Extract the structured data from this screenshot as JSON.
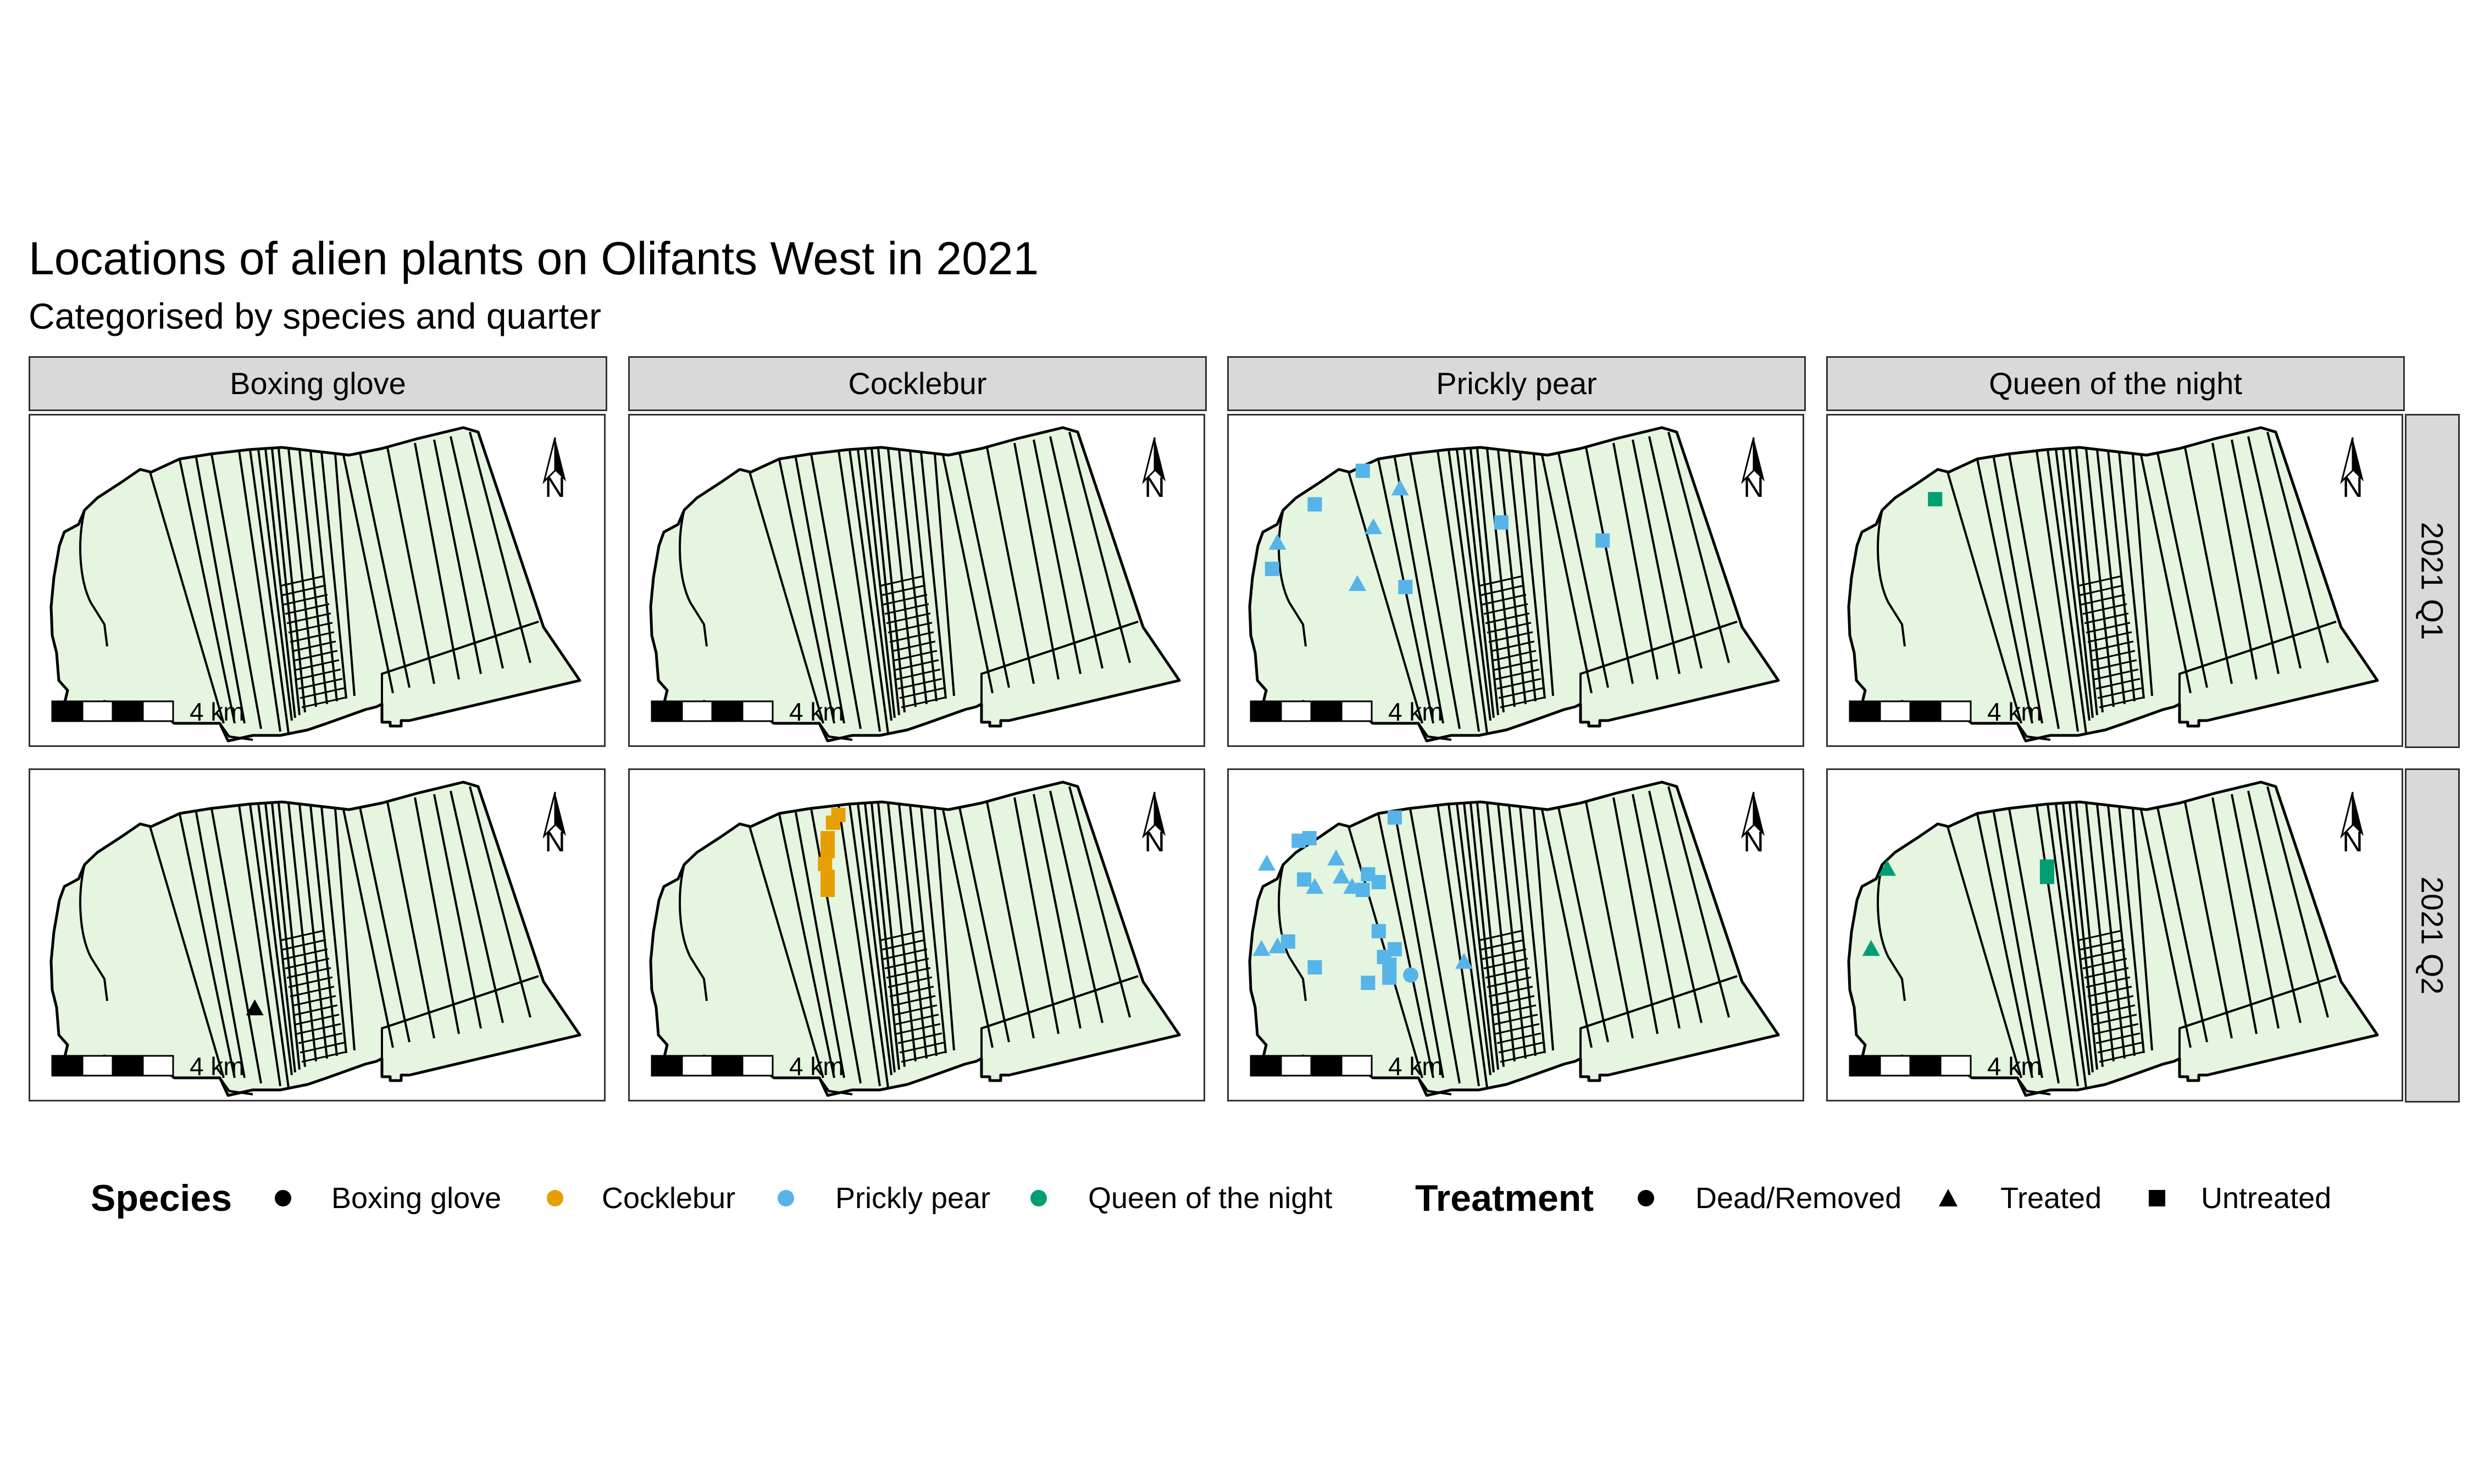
{
  "title": "Locations of alien plants on Olifants West in 2021",
  "subtitle": "Categorised by species and quarter",
  "facets": {
    "columns": [
      "Boxing glove",
      "Cocklebur",
      "Prickly pear",
      "Queen of the night"
    ],
    "rows": [
      "2021 Q1",
      "2021 Q2"
    ]
  },
  "map_furniture": {
    "scale_bar_label": "4 km",
    "north_arrow_label": "N"
  },
  "legend": {
    "species_title": "Species",
    "species": [
      {
        "label": "Boxing glove",
        "color": "#000000"
      },
      {
        "label": "Cocklebur",
        "color": "#E69F00"
      },
      {
        "label": "Prickly pear",
        "color": "#56B4E9"
      },
      {
        "label": "Queen of the night",
        "color": "#009E73"
      }
    ],
    "treatment_title": "Treatment",
    "treatments": [
      {
        "label": "Dead/Removed",
        "shape": "circle"
      },
      {
        "label": "Treated",
        "shape": "triangle"
      },
      {
        "label": "Untreated",
        "shape": "square"
      }
    ]
  },
  "colors": {
    "land_fill": "#E5F5E0",
    "strip_fill": "#D9D9D9",
    "boundary": "#000000"
  },
  "chart_data": {
    "type": "scatter",
    "facet_cols": [
      "Boxing glove",
      "Cocklebur",
      "Prickly pear",
      "Queen of the night"
    ],
    "facet_rows": [
      "2021 Q1",
      "2021 Q2"
    ],
    "coordinates": "relative position within the Olifants West map extent (0 = west/south edge, 1 = east/north edge)",
    "panels": [
      {
        "species": "Boxing glove",
        "quarter": "2021 Q1",
        "points": []
      },
      {
        "species": "Cocklebur",
        "quarter": "2021 Q1",
        "points": []
      },
      {
        "species": "Prickly pear",
        "quarter": "2021 Q1",
        "points": [
          {
            "x": 0.21,
            "y": 0.85,
            "treatment": "Untreated"
          },
          {
            "x": 0.12,
            "y": 0.72,
            "treatment": "Untreated"
          },
          {
            "x": 0.05,
            "y": 0.57,
            "treatment": "Treated"
          },
          {
            "x": 0.04,
            "y": 0.47,
            "treatment": "Untreated"
          },
          {
            "x": 0.28,
            "y": 0.78,
            "treatment": "Treated"
          },
          {
            "x": 0.23,
            "y": 0.63,
            "treatment": "Treated"
          },
          {
            "x": 0.2,
            "y": 0.41,
            "treatment": "Treated"
          },
          {
            "x": 0.29,
            "y": 0.4,
            "treatment": "Untreated"
          },
          {
            "x": 0.47,
            "y": 0.65,
            "treatment": "Untreated"
          },
          {
            "x": 0.66,
            "y": 0.58,
            "treatment": "Untreated"
          }
        ]
      },
      {
        "species": "Queen of the night",
        "quarter": "2021 Q1",
        "points": [
          {
            "x": 0.16,
            "y": 0.74,
            "treatment": "Untreated"
          }
        ]
      },
      {
        "species": "Boxing glove",
        "quarter": "2021 Q2",
        "points": [
          {
            "x": 0.38,
            "y": 0.14,
            "treatment": "Treated"
          }
        ]
      },
      {
        "species": "Cocklebur",
        "quarter": "2021 Q2",
        "points": [
          {
            "x": 0.35,
            "y": 0.89,
            "treatment": "Untreated"
          },
          {
            "x": 0.34,
            "y": 0.86,
            "treatment": "Untreated"
          },
          {
            "x": 0.33,
            "y": 0.8,
            "treatment": "Untreated"
          },
          {
            "x": 0.33,
            "y": 0.75,
            "treatment": "Untreated"
          },
          {
            "x": 0.325,
            "y": 0.7,
            "treatment": "Untreated"
          },
          {
            "x": 0.33,
            "y": 0.65,
            "treatment": "Untreated"
          },
          {
            "x": 0.33,
            "y": 0.6,
            "treatment": "Untreated"
          }
        ]
      },
      {
        "species": "Prickly pear",
        "quarter": "2021 Q2",
        "points": [
          {
            "x": 0.03,
            "y": 0.7,
            "treatment": "Treated"
          },
          {
            "x": 0.09,
            "y": 0.79,
            "treatment": "Untreated"
          },
          {
            "x": 0.11,
            "y": 0.8,
            "treatment": "Untreated"
          },
          {
            "x": 0.1,
            "y": 0.64,
            "treatment": "Untreated"
          },
          {
            "x": 0.12,
            "y": 0.61,
            "treatment": "Treated"
          },
          {
            "x": 0.16,
            "y": 0.72,
            "treatment": "Treated"
          },
          {
            "x": 0.17,
            "y": 0.65,
            "treatment": "Treated"
          },
          {
            "x": 0.19,
            "y": 0.61,
            "treatment": "Treated"
          },
          {
            "x": 0.21,
            "y": 0.6,
            "treatment": "Untreated"
          },
          {
            "x": 0.22,
            "y": 0.66,
            "treatment": "Untreated"
          },
          {
            "x": 0.24,
            "y": 0.63,
            "treatment": "Untreated"
          },
          {
            "x": 0.27,
            "y": 0.88,
            "treatment": "Untreated"
          },
          {
            "x": 0.02,
            "y": 0.37,
            "treatment": "Treated"
          },
          {
            "x": 0.05,
            "y": 0.38,
            "treatment": "Treated"
          },
          {
            "x": 0.07,
            "y": 0.4,
            "treatment": "Untreated"
          },
          {
            "x": 0.12,
            "y": 0.3,
            "treatment": "Untreated"
          },
          {
            "x": 0.24,
            "y": 0.44,
            "treatment": "Untreated"
          },
          {
            "x": 0.25,
            "y": 0.34,
            "treatment": "Untreated"
          },
          {
            "x": 0.26,
            "y": 0.31,
            "treatment": "Untreated"
          },
          {
            "x": 0.27,
            "y": 0.37,
            "treatment": "Untreated"
          },
          {
            "x": 0.26,
            "y": 0.26,
            "treatment": "Untreated"
          },
          {
            "x": 0.22,
            "y": 0.24,
            "treatment": "Untreated"
          },
          {
            "x": 0.3,
            "y": 0.27,
            "treatment": "Dead/Removed"
          },
          {
            "x": 0.4,
            "y": 0.32,
            "treatment": "Treated"
          }
        ]
      },
      {
        "species": "Queen of the night",
        "quarter": "2021 Q2",
        "points": [
          {
            "x": 0.07,
            "y": 0.68,
            "treatment": "Treated"
          },
          {
            "x": 0.04,
            "y": 0.37,
            "treatment": "Treated"
          },
          {
            "x": 0.37,
            "y": 0.69,
            "treatment": "Untreated"
          },
          {
            "x": 0.37,
            "y": 0.65,
            "treatment": "Untreated"
          }
        ]
      }
    ]
  }
}
